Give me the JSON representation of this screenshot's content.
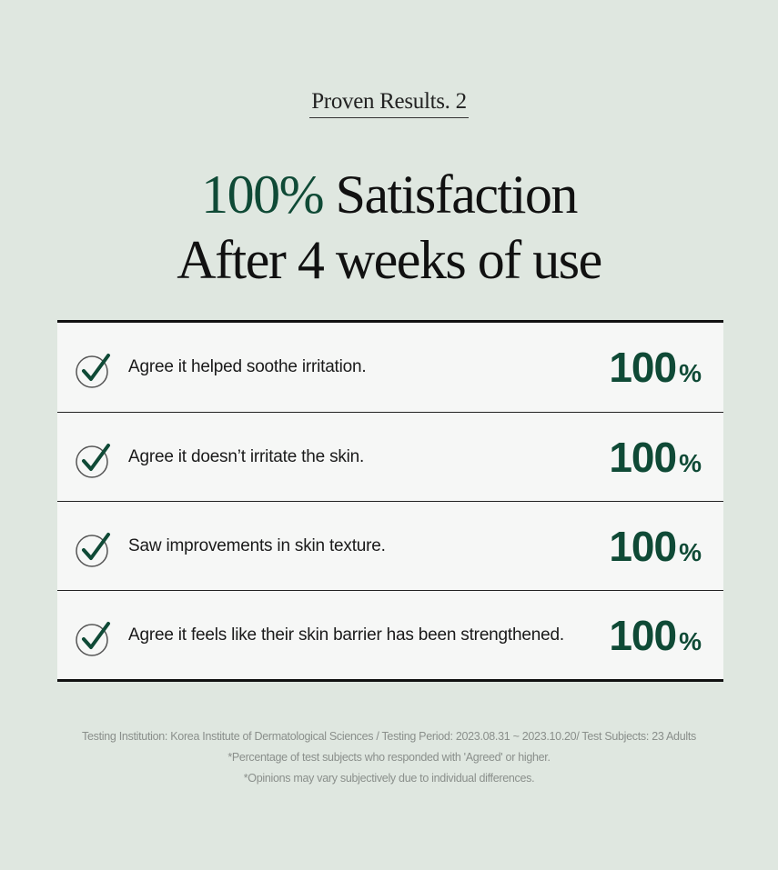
{
  "eyebrow": "Proven Results. 2",
  "title": {
    "accent": "100%",
    "line1_rest": " Satisfaction",
    "line2": "After 4 weeks of use"
  },
  "colors": {
    "accent": "#0f4a36",
    "background": "#dfe7e0"
  },
  "results": [
    {
      "icon": "check-circle-icon",
      "label": "Agree it helped soothe irritation.",
      "value": "100",
      "unit": "%"
    },
    {
      "icon": "check-circle-icon",
      "label": "Agree it doesn’t irritate the skin.",
      "value": "100",
      "unit": "%"
    },
    {
      "icon": "check-circle-icon",
      "label": "Saw improvements in skin texture.",
      "value": "100",
      "unit": "%"
    },
    {
      "icon": "check-circle-icon",
      "label": "Agree it feels like their skin barrier has been strengthened.",
      "value": "100",
      "unit": "%"
    }
  ],
  "footnotes": [
    "Testing Institution: Korea Institute of Dermatological Sciences / Testing Period: 2023.08.31 ~ 2023.10.20/ Test Subjects: 23 Adults",
    "*Percentage of test subjects who responded with 'Agreed' or higher.",
    "*Opinions may vary subjectively due to individual differences."
  ]
}
